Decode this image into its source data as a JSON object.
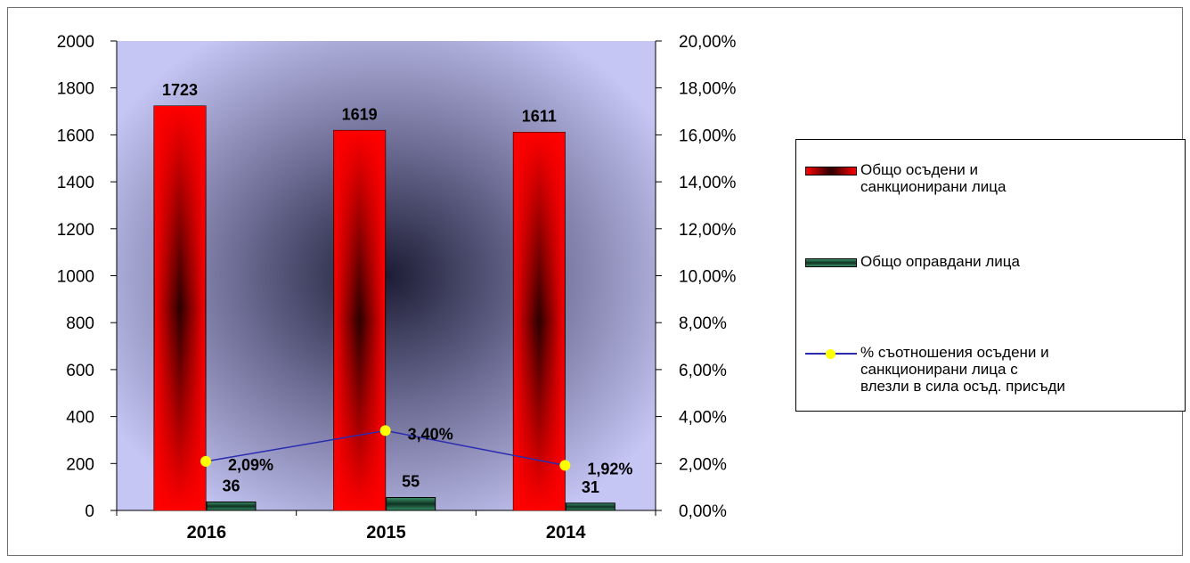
{
  "chart_data": {
    "type": "bar",
    "categories": [
      "2016",
      "2015",
      "2014"
    ],
    "series": [
      {
        "name": "Общо осъдени и\nсанкционирани лица",
        "values": [
          1723,
          1619,
          1611
        ],
        "type": "bar",
        "color": "#e00000",
        "axis": "left"
      },
      {
        "name": "Общо оправдани лица",
        "values": [
          36,
          55,
          31
        ],
        "type": "bar",
        "color": "#2e7d5b",
        "axis": "left"
      },
      {
        "name": "% съотношения осъдени и\nсанкционирани лица с\nвлезли в сила осъд. присъди",
        "values": [
          2.09,
          3.4,
          1.92
        ],
        "type": "line",
        "color": "#2b2bb0",
        "marker_color": "#ffff00",
        "axis": "right"
      }
    ],
    "data_labels": {
      "bar1": [
        "1723",
        "1619",
        "1611"
      ],
      "bar2": [
        "36",
        "55",
        "31"
      ],
      "line": [
        "2,09%",
        "3,40%",
        "1,92%"
      ]
    },
    "y_left": {
      "min": 0,
      "max": 2000,
      "step": 200,
      "ticks": [
        "0",
        "200",
        "400",
        "600",
        "800",
        "1000",
        "1200",
        "1400",
        "1600",
        "1800",
        "2000"
      ]
    },
    "y_right": {
      "min": 0,
      "max": 20,
      "step": 2,
      "ticks": [
        "0,00%",
        "2,00%",
        "4,00%",
        "6,00%",
        "8,00%",
        "10,00%",
        "12,00%",
        "14,00%",
        "16,00%",
        "18,00%",
        "20,00%"
      ]
    },
    "legend_position": "right",
    "plot_background": "#c6c6f5",
    "grid": false
  }
}
